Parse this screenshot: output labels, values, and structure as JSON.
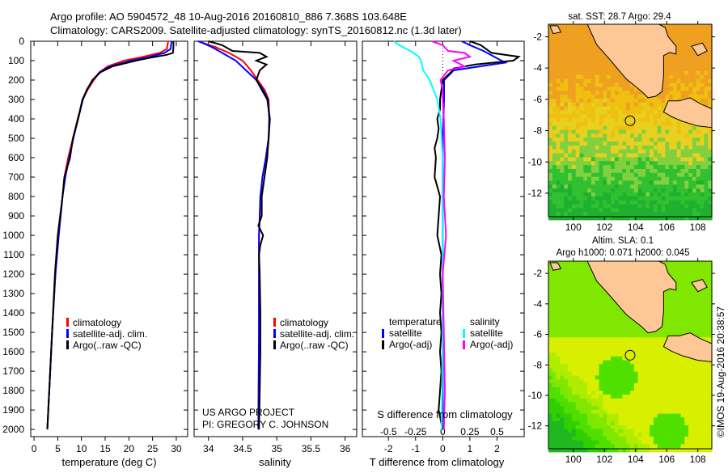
{
  "header": {
    "line1": "Argo profile: AO 5904572_48 10-Aug-2016 20160810_886 7.368S 103.648E",
    "line2": "Climatology: CARS2009. Satellite-adjusted climatology: synTS_20160812.nc (1.3d later)"
  },
  "credits": {
    "project": "US ARGO PROJECT",
    "pi": "PI: GREGORY C. JOHNSON",
    "imos": "©IMOS 19-Aug-2016 20:38:57"
  },
  "colors": {
    "climatology": "#ff0000",
    "satellite": "#0000ff",
    "argo": "#000000",
    "sal_satellite": "#00ffff",
    "sal_argo": "#ff00ff",
    "land": "#fdc896"
  },
  "chart_data": [
    {
      "type": "line",
      "id": "temperature",
      "xlabel": "temperature (deg C)",
      "ylabel": "",
      "xlim": [
        -0.7,
        32.4
      ],
      "ylim": [
        2037,
        0
      ],
      "xticks": [
        0,
        5,
        10,
        15,
        20,
        25,
        30
      ],
      "yticks": [
        0,
        100,
        200,
        300,
        400,
        500,
        600,
        700,
        800,
        900,
        1000,
        1100,
        1200,
        1300,
        1400,
        1500,
        1600,
        1700,
        1800,
        1900,
        2000
      ],
      "legend": [
        "climatology",
        "satellite-adj. clim.",
        "Argo(..raw -QC)"
      ],
      "series": [
        {
          "name": "climatology",
          "color": "#ff0000",
          "depth": [
            0,
            40,
            60,
            80,
            100,
            130,
            160,
            200,
            250,
            300,
            400,
            500,
            600,
            700,
            800,
            1000,
            1200,
            1500,
            1800,
            2000
          ],
          "values": [
            28.3,
            28.0,
            26.5,
            23,
            19,
            15.5,
            13.8,
            12.6,
            11.3,
            10.3,
            9.2,
            8.2,
            7.2,
            6.4,
            6.0,
            5.2,
            4.5,
            3.8,
            3.2,
            2.8
          ]
        },
        {
          "name": "satellite-adj. clim.",
          "color": "#0000ff",
          "depth": [
            0,
            40,
            60,
            80,
            100,
            130,
            160,
            200,
            250,
            300,
            400,
            500,
            600,
            700,
            800,
            1000,
            1200,
            1500,
            1800,
            2000
          ],
          "values": [
            29.0,
            28.8,
            27.5,
            24.5,
            20.5,
            16,
            13.8,
            12.4,
            11.1,
            10.3,
            9.3,
            8.3,
            7.4,
            6.6,
            6.0,
            5.2,
            4.5,
            3.8,
            3.2,
            2.8
          ]
        },
        {
          "name": "Argo(..raw -QC)",
          "color": "#000000",
          "depth": [
            0,
            30,
            60,
            70,
            85,
            100,
            130,
            160,
            200,
            250,
            300,
            400,
            500,
            600,
            700,
            800,
            1000,
            1200,
            1500,
            1800,
            2000
          ],
          "values": [
            29.4,
            29.4,
            29.3,
            28.0,
            24.5,
            21.5,
            16.5,
            14.0,
            12.3,
            11.2,
            10.2,
            9.3,
            8.2,
            7.6,
            6.4,
            6.0,
            5.0,
            4.4,
            3.8,
            3.2,
            2.8
          ]
        }
      ]
    },
    {
      "type": "line",
      "id": "salinity",
      "xlabel": "salinity",
      "xlim": [
        33.79,
        36.17
      ],
      "ylim": [
        2037,
        0
      ],
      "xticks": [
        34,
        34.5,
        35,
        35.5,
        36
      ],
      "legend": [
        "climatology",
        "satellite-adj. clim.",
        "Argo(..raw -QC)"
      ],
      "series": [
        {
          "name": "climatology",
          "color": "#ff0000",
          "depth": [
            0,
            30,
            60,
            100,
            150,
            200,
            250,
            300,
            400,
            500,
            600,
            700,
            800,
            900,
            1000,
            1200,
            1500,
            2000
          ],
          "values": [
            33.85,
            34.1,
            34.3,
            34.5,
            34.62,
            34.72,
            34.82,
            34.88,
            34.89,
            34.88,
            34.84,
            34.79,
            34.76,
            34.75,
            34.74,
            34.74,
            34.74,
            34.73
          ]
        },
        {
          "name": "satellite-adj. clim.",
          "color": "#0000ff",
          "depth": [
            0,
            30,
            60,
            100,
            150,
            200,
            250,
            300,
            400,
            500,
            600,
            700,
            800,
            900,
            1000,
            1200,
            1500,
            2000
          ],
          "values": [
            33.85,
            34.05,
            34.2,
            34.4,
            34.55,
            34.7,
            34.8,
            34.87,
            34.89,
            34.88,
            34.84,
            34.79,
            34.76,
            34.75,
            34.74,
            34.74,
            34.74,
            34.73
          ]
        },
        {
          "name": "Argo(..raw -QC)",
          "color": "#000000",
          "depth": [
            0,
            20,
            50,
            60,
            80,
            100,
            120,
            150,
            200,
            250,
            300,
            400,
            500,
            600,
            700,
            800,
            900,
            950,
            1000,
            1050,
            1100,
            1200,
            1400,
            1600,
            1800,
            2000
          ],
          "values": [
            34.0,
            34.2,
            34.35,
            34.75,
            34.85,
            34.7,
            34.85,
            34.75,
            34.7,
            34.78,
            34.86,
            34.9,
            34.88,
            34.86,
            34.82,
            34.78,
            34.78,
            34.73,
            34.8,
            34.76,
            34.74,
            34.75,
            34.76,
            34.76,
            34.75,
            34.74
          ]
        }
      ]
    },
    {
      "type": "line",
      "id": "difference",
      "xlabel": "T difference from climatology",
      "xlabel2": "S difference from climatology",
      "xlim": [
        -2.96,
        3.0
      ],
      "ylim": [
        2037,
        0
      ],
      "xticks": [
        -2,
        -1,
        0,
        1,
        2
      ],
      "xticks2": [
        -0.5,
        -0.25,
        0,
        0.25,
        0.5
      ],
      "legend_temperature_title": "temperature",
      "legend_salinity_title": "salinity",
      "legend": [
        "satellite",
        "Argo(-adj)",
        "satellite",
        "Argo(-adj)"
      ],
      "series": [
        {
          "name": "T satellite",
          "color": "#0000ff",
          "depth": [
            0,
            20,
            50,
            80,
            110,
            150,
            200,
            300,
            500,
            1000,
            2000
          ],
          "values": [
            0.7,
            1.0,
            1.5,
            1.9,
            2.3,
            0.4,
            0.05,
            0.05,
            0.0,
            0.0,
            0.0
          ]
        },
        {
          "name": "T Argo(-adj)",
          "color": "#000000",
          "depth": [
            0,
            20,
            60,
            80,
            100,
            120,
            140,
            160,
            200,
            250,
            300,
            350,
            400,
            450,
            500,
            550,
            600,
            700,
            800,
            900,
            1000,
            1100,
            1200,
            1300,
            1400,
            1500,
            1600,
            1700,
            1800,
            1900,
            2000
          ],
          "values": [
            1.0,
            1.4,
            1.8,
            2.8,
            2.6,
            1.2,
            0.4,
            0.3,
            0.0,
            -0.05,
            -0.1,
            -0.1,
            -0.2,
            -0.15,
            -0.2,
            -0.3,
            -0.25,
            -0.3,
            -0.1,
            -0.15,
            -0.2,
            -0.05,
            -0.1,
            -0.05,
            -0.1,
            -0.05,
            -0.1,
            -0.05,
            -0.1,
            -0.15,
            0.0
          ]
        },
        {
          "name": "S satellite",
          "color": "#00ffff",
          "factor": 4,
          "depth": [
            0,
            20,
            50,
            80,
            100,
            150,
            200,
            300,
            400,
            600,
            1000,
            1500,
            2000
          ],
          "values": [
            -0.45,
            -0.4,
            -0.3,
            -0.22,
            -0.2,
            -0.18,
            -0.12,
            -0.05,
            -0.02,
            0.0,
            0.0,
            0.0,
            -0.01
          ]
        },
        {
          "name": "S Argo(-adj)",
          "color": "#ff00ff",
          "factor": 4,
          "depth": [
            0,
            20,
            50,
            60,
            80,
            100,
            130,
            150,
            200,
            250,
            300,
            400,
            600,
            800,
            1000,
            1200,
            1500,
            1800,
            2000
          ],
          "values": [
            -0.1,
            0.0,
            0.05,
            0.2,
            0.25,
            0.1,
            0.2,
            0.05,
            -0.02,
            0.0,
            0.0,
            0.01,
            0.02,
            0.01,
            0.03,
            0.0,
            0.01,
            0.02,
            0.01
          ]
        }
      ]
    },
    {
      "type": "heatmap",
      "id": "sst_map",
      "title": "sat. SST: 28.7  Argo: 29.4",
      "xlim": [
        98.4,
        108.9
      ],
      "ylim": [
        -13.5,
        -1.2
      ],
      "xticks": [
        100,
        102,
        104,
        106,
        108
      ],
      "yticks": [
        -2,
        -4,
        -6,
        -8,
        -10,
        -12
      ],
      "argo_position": {
        "lon": 103.648,
        "lat": -7.368
      },
      "palette": [
        "#f0a020",
        "#f0c010",
        "#e8d020",
        "#80d040",
        "#30c030",
        "#20b030"
      ]
    },
    {
      "type": "heatmap",
      "id": "sla_map",
      "title": "Altim. SLA: 0.1",
      "subtitle": "Argo h1000: 0.071 h2000: 0.045",
      "xlim": [
        98.4,
        108.9
      ],
      "ylim": [
        -13.5,
        -1.2
      ],
      "xticks": [
        100,
        102,
        104,
        106,
        108
      ],
      "yticks": [
        -2,
        -4,
        -6,
        -8,
        -10,
        -12
      ],
      "argo_position": {
        "lon": 103.648,
        "lat": -7.368
      },
      "palette": [
        "#d8f000",
        "#b0ec00",
        "#80e800",
        "#50e000",
        "#30d000",
        "#20b820"
      ]
    }
  ]
}
